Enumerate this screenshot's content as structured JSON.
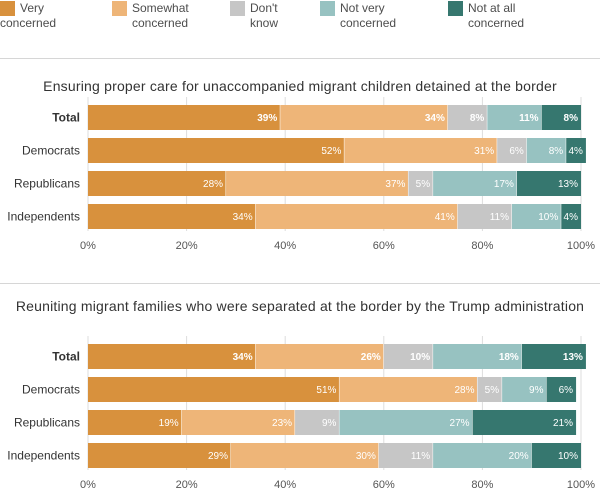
{
  "legend": [
    {
      "label_line1": "Very",
      "label_line2": "concerned",
      "color": "#d8913d"
    },
    {
      "label_line1": "Somewhat",
      "label_line2": "concerned",
      "color": "#eeb578"
    },
    {
      "label_line1": "Don't",
      "label_line2": "know",
      "color": "#c6c6c6"
    },
    {
      "label_line1": "Not very",
      "label_line2": "concerned",
      "color": "#97c2c1"
    },
    {
      "label_line1": "Not at all",
      "label_line2": "concerned",
      "color": "#36776f"
    }
  ],
  "chart_data": [
    {
      "type": "bar",
      "orientation": "horizontal",
      "stacked": true,
      "title": "Ensuring proper care for unaccompanied migrant children detained at the border",
      "categories": [
        "Total",
        "Democrats",
        "Republicans",
        "Independents"
      ],
      "series": [
        {
          "name": "Very concerned",
          "values": [
            39,
            52,
            28,
            34
          ]
        },
        {
          "name": "Somewhat concerned",
          "values": [
            34,
            31,
            37,
            41
          ]
        },
        {
          "name": "Don't know",
          "values": [
            8,
            6,
            5,
            11
          ]
        },
        {
          "name": "Not very concerned",
          "values": [
            11,
            8,
            17,
            10
          ]
        },
        {
          "name": "Not at all concerned",
          "values": [
            8,
            4,
            13,
            4
          ]
        }
      ],
      "xlim": [
        0,
        100
      ],
      "xticks": [
        "0%",
        "20%",
        "40%",
        "60%",
        "80%",
        "100%"
      ],
      "value_suffix": "%"
    },
    {
      "type": "bar",
      "orientation": "horizontal",
      "stacked": true,
      "title": "Reuniting migrant families who were separated at the border by the Trump administration",
      "categories": [
        "Total",
        "Democrats",
        "Republicans",
        "Independents"
      ],
      "series": [
        {
          "name": "Very concerned",
          "values": [
            34,
            51,
            19,
            29
          ]
        },
        {
          "name": "Somewhat concerned",
          "values": [
            26,
            28,
            23,
            30
          ]
        },
        {
          "name": "Don't know",
          "values": [
            10,
            5,
            9,
            11
          ]
        },
        {
          "name": "Not very concerned",
          "values": [
            18,
            9,
            27,
            20
          ]
        },
        {
          "name": "Not at all concerned",
          "values": [
            13,
            6,
            21,
            10
          ]
        }
      ],
      "xlim": [
        0,
        100
      ],
      "xticks": [
        "0%",
        "20%",
        "40%",
        "60%",
        "80%",
        "100%"
      ],
      "value_suffix": "%"
    }
  ]
}
